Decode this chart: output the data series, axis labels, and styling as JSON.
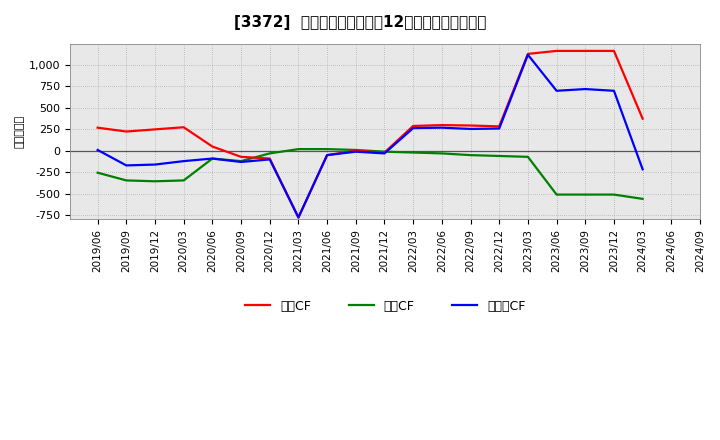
{
  "title": "[3372]  キャッシュフローの12か月移動合計の推移",
  "ylabel": "（百万円）",
  "dates": [
    "2019/06",
    "2019/09",
    "2019/12",
    "2020/03",
    "2020/06",
    "2020/09",
    "2020/12",
    "2021/03",
    "2021/06",
    "2021/09",
    "2021/12",
    "2022/03",
    "2022/06",
    "2022/09",
    "2022/12",
    "2023/03",
    "2023/06",
    "2023/09",
    "2023/12",
    "2024/03",
    "2024/06",
    "2024/09"
  ],
  "eigyo_cf": [
    270,
    225,
    250,
    275,
    50,
    -70,
    -90,
    -780,
    -50,
    0,
    -20,
    290,
    300,
    295,
    285,
    1130,
    1165,
    1165,
    1165,
    375,
    null,
    null
  ],
  "toshi_cf": [
    -255,
    -345,
    -355,
    -345,
    -90,
    -120,
    -30,
    20,
    20,
    10,
    -10,
    -20,
    -30,
    -50,
    -60,
    -70,
    -510,
    -510,
    -510,
    -560,
    null,
    null
  ],
  "free_cf": [
    10,
    -170,
    -160,
    -120,
    -90,
    -130,
    -100,
    -775,
    -50,
    -10,
    -30,
    265,
    270,
    255,
    260,
    1120,
    700,
    720,
    700,
    -215,
    null,
    null
  ],
  "eigyo_color": "#ff0000",
  "toshi_color": "#008000",
  "free_color": "#0000ff",
  "ylim": [
    -800,
    1250
  ],
  "yticks": [
    -750,
    -500,
    -250,
    0,
    250,
    500,
    750,
    1000
  ],
  "legend_labels": [
    "営業CF",
    "投資CF",
    "フリーCF"
  ],
  "bg_color": "#e8e8e8",
  "grid_color": "#999999",
  "title_fontsize": 11,
  "tick_fontsize": 7.5,
  "ylabel_fontsize": 8
}
